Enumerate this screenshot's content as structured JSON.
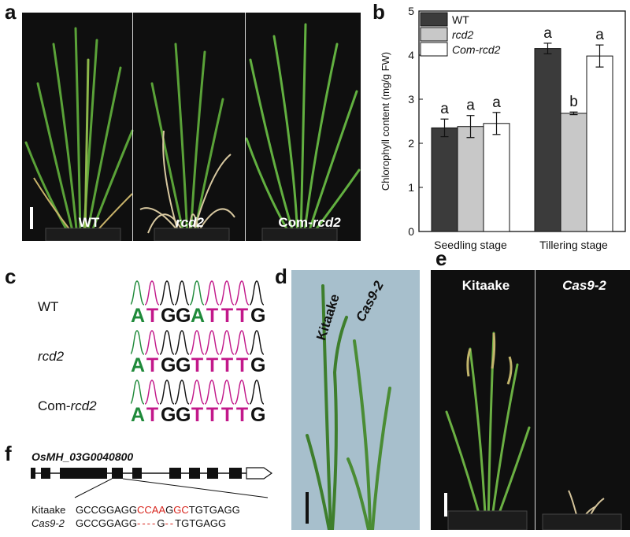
{
  "panels": {
    "a": {
      "letter": "a",
      "labels": {
        "wt": "WT",
        "rcd2": "rcd2",
        "com_prefix": "Com-",
        "com_it": "rcd2"
      }
    },
    "b": {
      "letter": "b"
    },
    "c": {
      "letter": "c",
      "rows": [
        {
          "label": "WT",
          "label_prefix": "",
          "label_it": "",
          "seq": [
            "A",
            "T",
            "G",
            "G",
            "A",
            "T",
            "T",
            "T",
            "G"
          ],
          "colors": [
            "g",
            "m",
            "k",
            "k",
            "g",
            "m",
            "m",
            "m",
            "k"
          ]
        },
        {
          "label": "",
          "label_prefix": "",
          "label_it": "rcd2",
          "seq": [
            "A",
            "T",
            "G",
            "G",
            "T",
            "T",
            "T",
            "T",
            "G"
          ],
          "colors": [
            "g",
            "m",
            "k",
            "k",
            "m",
            "m",
            "m",
            "m",
            "k"
          ]
        },
        {
          "label": "",
          "label_prefix": "Com-",
          "label_it": "rcd2",
          "seq": [
            "A",
            "T",
            "G",
            "G",
            "T",
            "T",
            "T",
            "T",
            "G"
          ],
          "colors": [
            "g",
            "m",
            "k",
            "k",
            "m",
            "m",
            "m",
            "m",
            "k"
          ]
        }
      ]
    },
    "d": {
      "letter": "d",
      "labels": {
        "kitaake": "Kitaake",
        "cas9": "Cas9-2"
      }
    },
    "e": {
      "letter": "e",
      "labels": {
        "kitaake": "Kitaake",
        "cas9": "Cas9-2"
      }
    },
    "f": {
      "letter": "f",
      "gene": "OsMH_03G0040800",
      "kitaake_label": "Kitaake",
      "cas9_label": "Cas9-2",
      "kitaake_seq": {
        "a": "GCCGGAGG",
        "b": "CCAA",
        "c": "G",
        "d": "GC",
        "e": "TGTGAGG"
      },
      "cas9_seq": {
        "a": "GCCGGAGG",
        "b": "----",
        "c": "G",
        "d": "--",
        "e": "TGTGAGG"
      }
    }
  },
  "chart_data": {
    "type": "bar",
    "ylabel": "Chlorophyll content (mg/g FW)",
    "ylim": [
      0,
      5
    ],
    "yticks": [
      "0",
      "1",
      "2",
      "3",
      "4",
      "5"
    ],
    "categories": [
      "Seedling stage",
      "Tillering stage"
    ],
    "legend_position": "top-left",
    "series": [
      {
        "name": "WT",
        "italic": false,
        "color": "#3b3b3b",
        "values": [
          2.35,
          4.15
        ],
        "errors": [
          0.2,
          0.12
        ],
        "letters": [
          "a",
          "a"
        ]
      },
      {
        "name": "rcd2",
        "italic": true,
        "color": "#c8c8c8",
        "values": [
          2.38,
          2.68
        ],
        "errors": [
          0.25,
          0.03
        ],
        "letters": [
          "a",
          "b"
        ]
      },
      {
        "name": "Com-rcd2",
        "italic": true,
        "color": "#ffffff",
        "values": [
          2.45,
          3.98
        ],
        "errors": [
          0.25,
          0.25
        ],
        "letters": [
          "a",
          "a"
        ]
      }
    ]
  }
}
